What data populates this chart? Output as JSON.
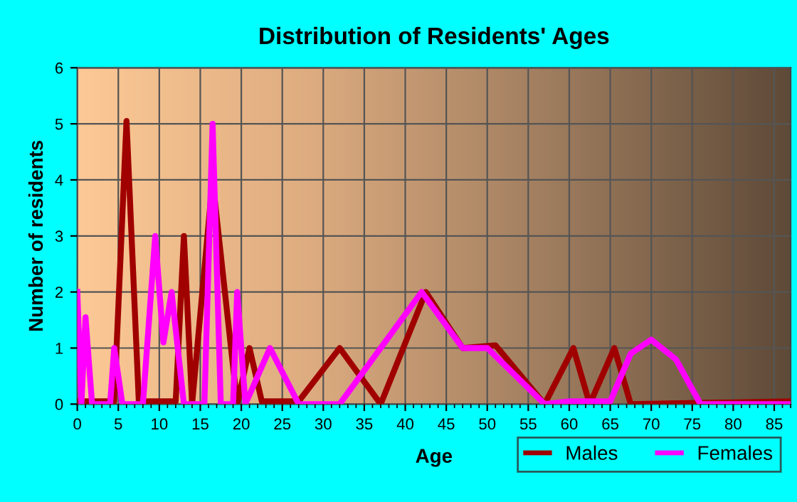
{
  "chart_data": {
    "type": "line",
    "title": "Distribution of Residents' Ages",
    "xlabel": "Age",
    "ylabel": "Number of residents",
    "xlim": [
      0,
      87
    ],
    "xticks": [
      0,
      5,
      10,
      15,
      20,
      25,
      30,
      35,
      40,
      45,
      50,
      55,
      60,
      65,
      70,
      75,
      80,
      85
    ],
    "ylim": [
      0,
      6
    ],
    "yticks": [
      0,
      1,
      2,
      3,
      4,
      5,
      6
    ],
    "grid": true,
    "legend": "bottom right",
    "marker": "none",
    "line_style": "solid",
    "series": [
      {
        "name": "Males",
        "color": "#a00000",
        "x": [
          0,
          4.5,
          6,
          7.5,
          12,
          13,
          14,
          16.5,
          18,
          19.5,
          21,
          22.5,
          27,
          32,
          37,
          42.5,
          47,
          51,
          57,
          60.5,
          62.5,
          65.5,
          67.5,
          87
        ],
        "values": [
          0.05,
          0.05,
          5.05,
          0.05,
          0.05,
          3,
          0,
          4,
          2,
          0,
          1,
          0.05,
          0.05,
          1,
          0,
          2,
          1,
          1.05,
          0,
          1,
          0,
          1,
          0,
          0.05
        ]
      },
      {
        "name": "Females",
        "color": "#ff00ff",
        "x": [
          0,
          0.5,
          1,
          1.8,
          4,
          4.5,
          5.5,
          8,
          9.5,
          10.5,
          11.5,
          13,
          15.5,
          16.5,
          17.5,
          19,
          19.5,
          20.5,
          23.5,
          27,
          32,
          37,
          42,
          47,
          50,
          57,
          60,
          65,
          67.5,
          70,
          73,
          76,
          87
        ],
        "values": [
          2,
          0,
          1.55,
          0,
          0,
          1,
          0,
          0,
          3,
          1.1,
          2,
          0,
          0,
          5,
          0,
          0,
          2,
          0,
          1,
          0,
          0,
          1,
          2,
          1,
          1,
          0,
          0.05,
          0.05,
          0.9,
          1.15,
          0.8,
          0,
          0
        ]
      }
    ]
  }
}
